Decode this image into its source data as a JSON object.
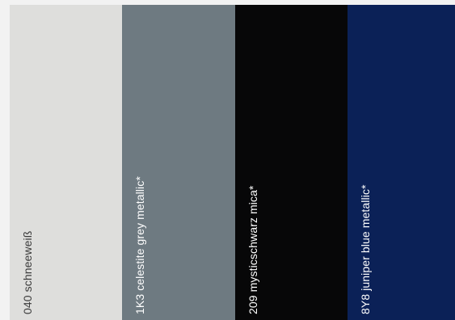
{
  "colors": {
    "background": "#f2f2f2"
  },
  "swatches": [
    {
      "label": "040 schneeweiß",
      "color": "#dededc",
      "text_color": "#3a3a3a"
    },
    {
      "label": "1K3 celestite grey metallic*",
      "color": "#6e7a81",
      "text_color": "#ffffff"
    },
    {
      "label": "209 mysticschwarz mica*",
      "color": "#070708",
      "text_color": "#ffffff"
    },
    {
      "label": "8Y8 juniper blue metallic*",
      "color": "#0b2157",
      "text_color": "#ffffff"
    }
  ]
}
